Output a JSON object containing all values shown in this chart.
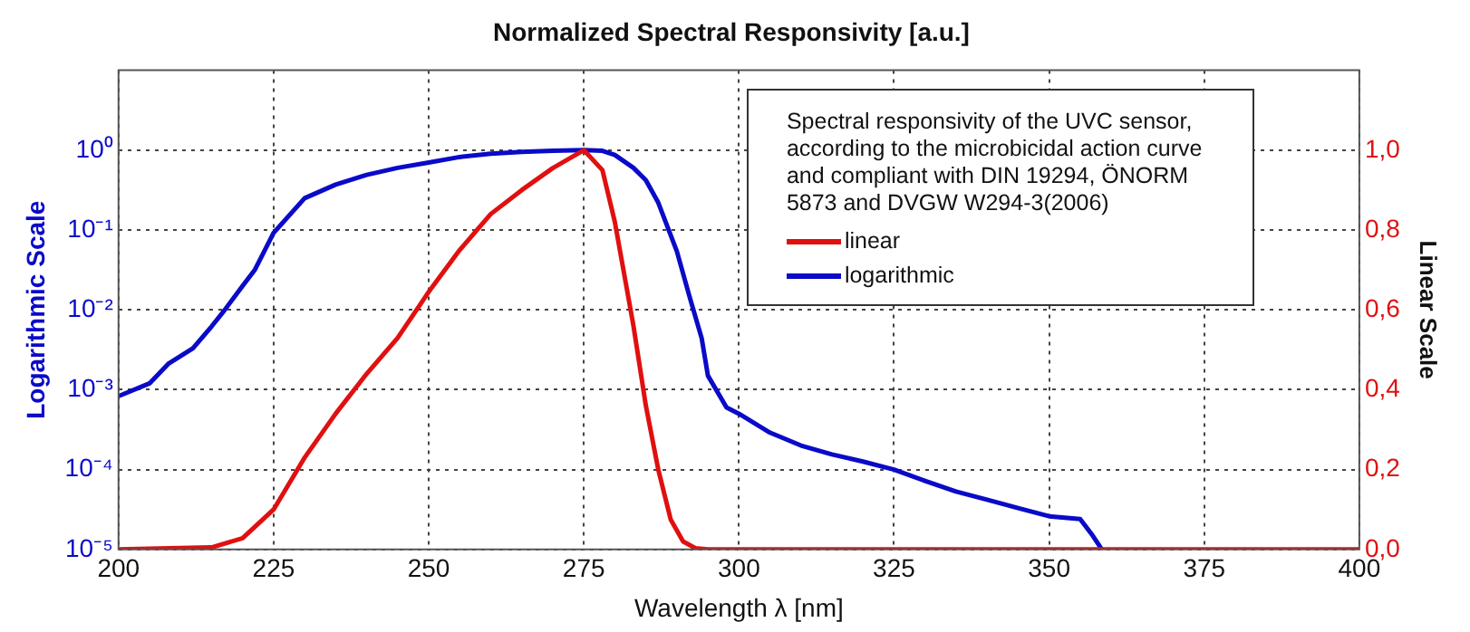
{
  "chart_data": {
    "type": "line",
    "title": "Normalized Spectral Responsivity [a.u.]",
    "xlabel": "Wavelength λ [nm]",
    "ylabel": "Logarithmic Scale",
    "y2label": "Linear Scale",
    "annotations": [
      "Spectral responsivity of the UVC sensor, according to the microbicidal action curve and compliant with DIN 19294, ÖNORM 5873 and DVGW W294-3(2006)"
    ],
    "log": "y",
    "grid": true,
    "legend": "top right",
    "marker": "none",
    "line_style": "solid",
    "xlim": [
      200,
      400
    ],
    "xticks": [
      200,
      225,
      250,
      275,
      300,
      325,
      350,
      375,
      400
    ],
    "ylim": [
      1e-05,
      10
    ],
    "yticks": [
      {
        "value": 1e-05,
        "label": "10⁻⁵"
      },
      {
        "value": 0.0001,
        "label": "10⁻⁴"
      },
      {
        "value": 0.001,
        "label": "10⁻³"
      },
      {
        "value": 0.01,
        "label": "10⁻²"
      },
      {
        "value": 0.1,
        "label": "10⁻¹"
      },
      {
        "value": 1,
        "label": "10⁰"
      }
    ],
    "y2lim": [
      0,
      1.2
    ],
    "y2ticks": [
      {
        "value": 0,
        "label": "0,0"
      },
      {
        "value": 0.2,
        "label": "0,2"
      },
      {
        "value": 0.4,
        "label": "0,4"
      },
      {
        "value": 0.6,
        "label": "0,6"
      },
      {
        "value": 0.8,
        "label": "0,8"
      },
      {
        "value": 1,
        "label": "1,0"
      }
    ],
    "series": [
      {
        "name": "linear",
        "color": "#e01010",
        "axis": "y2",
        "x": [
          200,
          215,
          220,
          225,
          230,
          235,
          240,
          245,
          250,
          255,
          260,
          265,
          270,
          275,
          278,
          280,
          283,
          285,
          287,
          289,
          291,
          293,
          295,
          400
        ],
        "values": [
          0,
          0.005,
          0.028,
          0.1,
          0.23,
          0.34,
          0.44,
          0.53,
          0.645,
          0.75,
          0.84,
          0.9,
          0.955,
          1,
          0.95,
          0.82,
          0.56,
          0.36,
          0.2,
          0.075,
          0.02,
          0.003,
          0,
          0
        ]
      },
      {
        "name": "logarithmic",
        "color": "#0a0ac8",
        "axis": "y",
        "x": [
          200,
          205,
          208,
          212,
          215,
          217,
          220,
          222,
          225,
          230,
          235,
          240,
          245,
          250,
          255,
          260,
          265,
          270,
          275,
          278,
          280,
          283,
          285,
          287,
          290,
          292,
          294,
          295,
          298,
          300,
          305,
          310,
          315,
          320,
          325,
          330,
          335,
          340,
          345,
          350,
          355,
          357,
          358.5
        ],
        "values": [
          0.00083,
          0.0012,
          0.0021,
          0.0033,
          0.0062,
          0.0097,
          0.02,
          0.032,
          0.092,
          0.25,
          0.37,
          0.49,
          0.6,
          0.7,
          0.82,
          0.9,
          0.95,
          0.98,
          1,
          0.98,
          0.87,
          0.6,
          0.42,
          0.22,
          0.054,
          0.015,
          0.0044,
          0.0015,
          0.0006,
          0.0005,
          0.00029,
          0.0002,
          0.000155,
          0.000126,
          0.0001,
          7.2e-05,
          5.3e-05,
          4.2e-05,
          3.3e-05,
          2.6e-05,
          2.4e-05,
          1.5e-05,
          1e-05
        ]
      }
    ]
  }
}
